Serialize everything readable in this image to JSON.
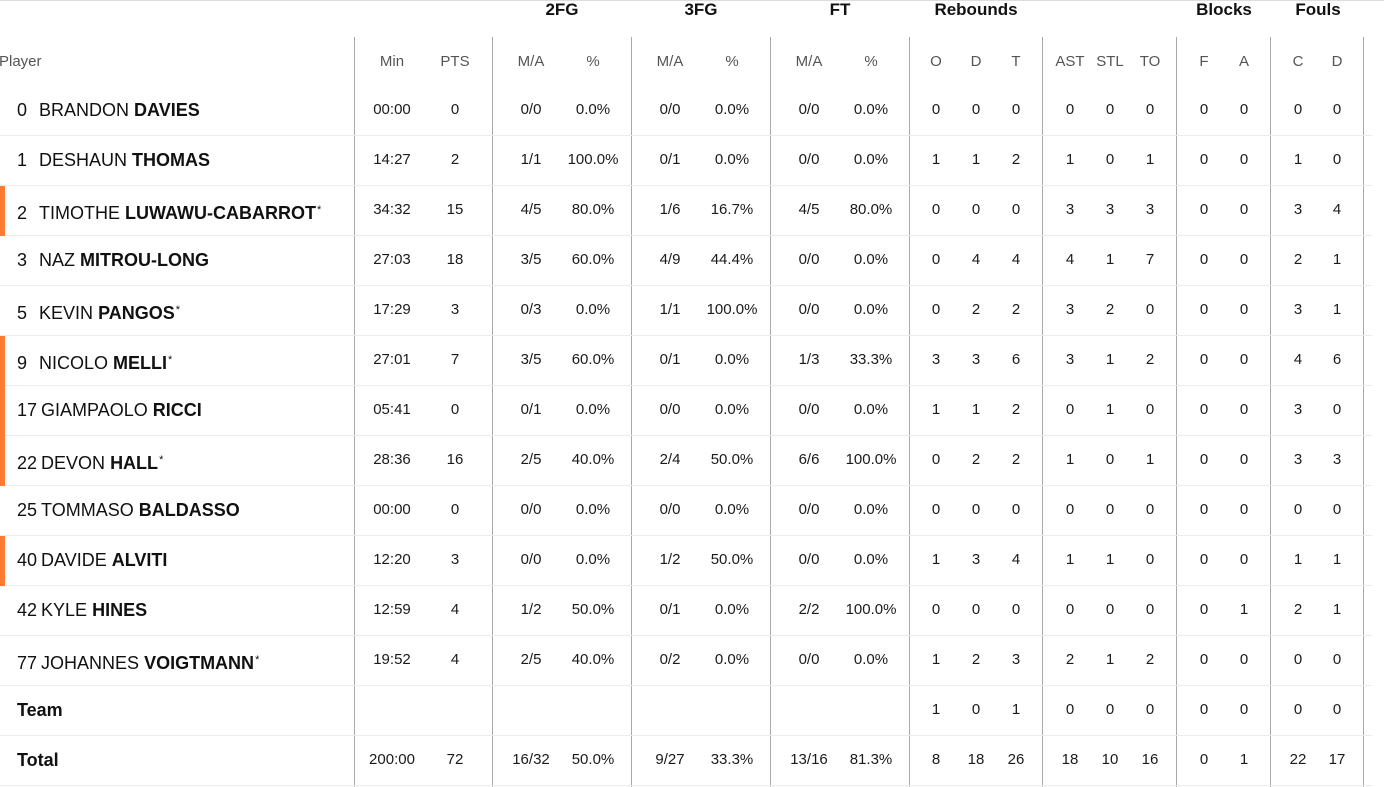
{
  "groups": {
    "fg2": "2FG",
    "fg3": "3FG",
    "ft": "FT",
    "rebounds": "Rebounds",
    "blocks": "Blocks",
    "fouls": "Fouls"
  },
  "columns": {
    "player": "Player",
    "min": "Min",
    "pts": "PTS",
    "fg2_ma": "M/A",
    "fg2_pct": "%",
    "fg3_ma": "M/A",
    "fg3_pct": "%",
    "ft_ma": "M/A",
    "ft_pct": "%",
    "reb_o": "O",
    "reb_d": "D",
    "reb_t": "T",
    "ast": "AST",
    "stl": "STL",
    "to": "TO",
    "blk_f": "F",
    "blk_a": "A",
    "foul_c": "C",
    "foul_d": "D"
  },
  "accent_color": "#ff7a33",
  "players": [
    {
      "num": "0",
      "first": "BRANDON",
      "last": "DAVIES",
      "star": "",
      "accent": false,
      "min": "00:00",
      "pts": "0",
      "fg2_ma": "0/0",
      "fg2_pct": "0.0%",
      "fg3_ma": "0/0",
      "fg3_pct": "0.0%",
      "ft_ma": "0/0",
      "ft_pct": "0.0%",
      "reb_o": "0",
      "reb_d": "0",
      "reb_t": "0",
      "ast": "0",
      "stl": "0",
      "to": "0",
      "blk_f": "0",
      "blk_a": "0",
      "foul_c": "0",
      "foul_d": "0"
    },
    {
      "num": "1",
      "first": "DESHAUN",
      "last": "THOMAS",
      "star": "",
      "accent": false,
      "min": "14:27",
      "pts": "2",
      "fg2_ma": "1/1",
      "fg2_pct": "100.0%",
      "fg3_ma": "0/1",
      "fg3_pct": "0.0%",
      "ft_ma": "0/0",
      "ft_pct": "0.0%",
      "reb_o": "1",
      "reb_d": "1",
      "reb_t": "2",
      "ast": "1",
      "stl": "0",
      "to": "1",
      "blk_f": "0",
      "blk_a": "0",
      "foul_c": "1",
      "foul_d": "0"
    },
    {
      "num": "2",
      "first": "TIMOTHE",
      "last": "LUWAWU-CABARROT",
      "star": "*",
      "accent": true,
      "min": "34:32",
      "pts": "15",
      "fg2_ma": "4/5",
      "fg2_pct": "80.0%",
      "fg3_ma": "1/6",
      "fg3_pct": "16.7%",
      "ft_ma": "4/5",
      "ft_pct": "80.0%",
      "reb_o": "0",
      "reb_d": "0",
      "reb_t": "0",
      "ast": "3",
      "stl": "3",
      "to": "3",
      "blk_f": "0",
      "blk_a": "0",
      "foul_c": "3",
      "foul_d": "4"
    },
    {
      "num": "3",
      "first": "NAZ",
      "last": "MITROU-LONG",
      "star": "",
      "accent": false,
      "min": "27:03",
      "pts": "18",
      "fg2_ma": "3/5",
      "fg2_pct": "60.0%",
      "fg3_ma": "4/9",
      "fg3_pct": "44.4%",
      "ft_ma": "0/0",
      "ft_pct": "0.0%",
      "reb_o": "0",
      "reb_d": "4",
      "reb_t": "4",
      "ast": "4",
      "stl": "1",
      "to": "7",
      "blk_f": "0",
      "blk_a": "0",
      "foul_c": "2",
      "foul_d": "1"
    },
    {
      "num": "5",
      "first": "KEVIN",
      "last": "PANGOS",
      "star": "*",
      "accent": false,
      "min": "17:29",
      "pts": "3",
      "fg2_ma": "0/3",
      "fg2_pct": "0.0%",
      "fg3_ma": "1/1",
      "fg3_pct": "100.0%",
      "ft_ma": "0/0",
      "ft_pct": "0.0%",
      "reb_o": "0",
      "reb_d": "2",
      "reb_t": "2",
      "ast": "3",
      "stl": "2",
      "to": "0",
      "blk_f": "0",
      "blk_a": "0",
      "foul_c": "3",
      "foul_d": "1"
    },
    {
      "num": "9",
      "first": "NICOLO",
      "last": "MELLI",
      "star": "*",
      "accent": true,
      "min": "27:01",
      "pts": "7",
      "fg2_ma": "3/5",
      "fg2_pct": "60.0%",
      "fg3_ma": "0/1",
      "fg3_pct": "0.0%",
      "ft_ma": "1/3",
      "ft_pct": "33.3%",
      "reb_o": "3",
      "reb_d": "3",
      "reb_t": "6",
      "ast": "3",
      "stl": "1",
      "to": "2",
      "blk_f": "0",
      "blk_a": "0",
      "foul_c": "4",
      "foul_d": "6"
    },
    {
      "num": "17",
      "first": "GIAMPAOLO",
      "last": "RICCI",
      "star": "",
      "accent": true,
      "min": "05:41",
      "pts": "0",
      "fg2_ma": "0/1",
      "fg2_pct": "0.0%",
      "fg3_ma": "0/0",
      "fg3_pct": "0.0%",
      "ft_ma": "0/0",
      "ft_pct": "0.0%",
      "reb_o": "1",
      "reb_d": "1",
      "reb_t": "2",
      "ast": "0",
      "stl": "1",
      "to": "0",
      "blk_f": "0",
      "blk_a": "0",
      "foul_c": "3",
      "foul_d": "0"
    },
    {
      "num": "22",
      "first": "DEVON",
      "last": "HALL",
      "star": "*",
      "accent": true,
      "min": "28:36",
      "pts": "16",
      "fg2_ma": "2/5",
      "fg2_pct": "40.0%",
      "fg3_ma": "2/4",
      "fg3_pct": "50.0%",
      "ft_ma": "6/6",
      "ft_pct": "100.0%",
      "reb_o": "0",
      "reb_d": "2",
      "reb_t": "2",
      "ast": "1",
      "stl": "0",
      "to": "1",
      "blk_f": "0",
      "blk_a": "0",
      "foul_c": "3",
      "foul_d": "3"
    },
    {
      "num": "25",
      "first": "TOMMASO",
      "last": "BALDASSO",
      "star": "",
      "accent": false,
      "min": "00:00",
      "pts": "0",
      "fg2_ma": "0/0",
      "fg2_pct": "0.0%",
      "fg3_ma": "0/0",
      "fg3_pct": "0.0%",
      "ft_ma": "0/0",
      "ft_pct": "0.0%",
      "reb_o": "0",
      "reb_d": "0",
      "reb_t": "0",
      "ast": "0",
      "stl": "0",
      "to": "0",
      "blk_f": "0",
      "blk_a": "0",
      "foul_c": "0",
      "foul_d": "0"
    },
    {
      "num": "40",
      "first": "DAVIDE",
      "last": "ALVITI",
      "star": "",
      "accent": true,
      "min": "12:20",
      "pts": "3",
      "fg2_ma": "0/0",
      "fg2_pct": "0.0%",
      "fg3_ma": "1/2",
      "fg3_pct": "50.0%",
      "ft_ma": "0/0",
      "ft_pct": "0.0%",
      "reb_o": "1",
      "reb_d": "3",
      "reb_t": "4",
      "ast": "1",
      "stl": "1",
      "to": "0",
      "blk_f": "0",
      "blk_a": "0",
      "foul_c": "1",
      "foul_d": "1"
    },
    {
      "num": "42",
      "first": "KYLE",
      "last": "HINES",
      "star": "",
      "accent": false,
      "min": "12:59",
      "pts": "4",
      "fg2_ma": "1/2",
      "fg2_pct": "50.0%",
      "fg3_ma": "0/1",
      "fg3_pct": "0.0%",
      "ft_ma": "2/2",
      "ft_pct": "100.0%",
      "reb_o": "0",
      "reb_d": "0",
      "reb_t": "0",
      "ast": "0",
      "stl": "0",
      "to": "0",
      "blk_f": "0",
      "blk_a": "1",
      "foul_c": "2",
      "foul_d": "1"
    },
    {
      "num": "77",
      "first": "JOHANNES",
      "last": "VOIGTMANN",
      "star": "*",
      "accent": false,
      "min": "19:52",
      "pts": "4",
      "fg2_ma": "2/5",
      "fg2_pct": "40.0%",
      "fg3_ma": "0/2",
      "fg3_pct": "0.0%",
      "ft_ma": "0/0",
      "ft_pct": "0.0%",
      "reb_o": "1",
      "reb_d": "2",
      "reb_t": "3",
      "ast": "2",
      "stl": "1",
      "to": "2",
      "blk_f": "0",
      "blk_a": "0",
      "foul_c": "0",
      "foul_d": "0"
    }
  ],
  "team": {
    "label": "Team",
    "reb_o": "1",
    "reb_d": "0",
    "reb_t": "1",
    "ast": "0",
    "stl": "0",
    "to": "0",
    "blk_f": "0",
    "blk_a": "0",
    "foul_c": "0",
    "foul_d": "0"
  },
  "total": {
    "label": "Total",
    "min": "200:00",
    "pts": "72",
    "fg2_ma": "16/32",
    "fg2_pct": "50.0%",
    "fg3_ma": "9/27",
    "fg3_pct": "33.3%",
    "ft_ma": "13/16",
    "ft_pct": "81.3%",
    "reb_o": "8",
    "reb_d": "18",
    "reb_t": "26",
    "ast": "18",
    "stl": "10",
    "to": "16",
    "blk_f": "0",
    "blk_a": "1",
    "foul_c": "22",
    "foul_d": "17"
  }
}
